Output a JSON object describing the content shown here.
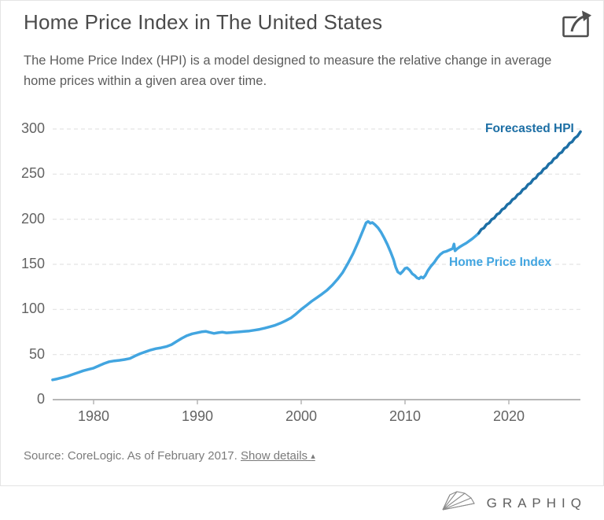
{
  "header": {
    "title": "Home Price Index in The United States",
    "subtitle": "The Home Price Index (HPI) is a model designed to measure the relative change in average home prices within a given area over time.",
    "share_icon": "share-export-icon"
  },
  "chart_data": {
    "type": "line",
    "title": "Home Price Index in The United States",
    "xlabel": "",
    "ylabel": "",
    "grid": "horizontal-dashed",
    "legend_position": "inline-line-labels",
    "x_axis": {
      "ticks": [
        1980,
        1990,
        2000,
        2010,
        2020
      ],
      "range": [
        1976.05,
        2026.9
      ]
    },
    "y_axis": {
      "ticks": [
        0,
        50,
        100,
        150,
        200,
        250,
        300
      ],
      "range": [
        0,
        310
      ]
    },
    "series": [
      {
        "name": "Home Price Index",
        "color": "#42a5e0",
        "points": [
          [
            1976.05,
            22
          ],
          [
            1976.5,
            23
          ],
          [
            1977,
            24.5
          ],
          [
            1977.5,
            26
          ],
          [
            1978,
            28
          ],
          [
            1978.5,
            30
          ],
          [
            1979,
            32
          ],
          [
            1979.5,
            33.5
          ],
          [
            1980,
            35
          ],
          [
            1980.5,
            37.5
          ],
          [
            1981,
            40
          ],
          [
            1981.5,
            42
          ],
          [
            1982,
            43
          ],
          [
            1982.5,
            43.6
          ],
          [
            1983,
            44.5
          ],
          [
            1983.5,
            45.6
          ],
          [
            1984,
            48.5
          ],
          [
            1984.5,
            51
          ],
          [
            1985,
            53
          ],
          [
            1985.5,
            55
          ],
          [
            1986,
            56.5
          ],
          [
            1986.5,
            57.5
          ],
          [
            1987,
            58.8
          ],
          [
            1987.5,
            61
          ],
          [
            1988,
            64.5
          ],
          [
            1988.5,
            68
          ],
          [
            1989,
            71
          ],
          [
            1989.5,
            73
          ],
          [
            1990,
            74.2
          ],
          [
            1990.4,
            75.2
          ],
          [
            1990.8,
            75.7
          ],
          [
            1991.2,
            74.5
          ],
          [
            1991.6,
            73.4
          ],
          [
            1992,
            74.2
          ],
          [
            1992.4,
            74.8
          ],
          [
            1992.8,
            74
          ],
          [
            1993.2,
            74.3
          ],
          [
            1993.6,
            74.7
          ],
          [
            1994,
            75.1
          ],
          [
            1994.5,
            75.6
          ],
          [
            1995,
            76.1
          ],
          [
            1995.5,
            77
          ],
          [
            1996,
            78
          ],
          [
            1996.5,
            79.3
          ],
          [
            1997,
            80.8
          ],
          [
            1997.5,
            82.5
          ],
          [
            1998,
            84.8
          ],
          [
            1998.5,
            87.5
          ],
          [
            1999,
            90.5
          ],
          [
            1999.5,
            95
          ],
          [
            2000,
            100
          ],
          [
            2000.5,
            104.5
          ],
          [
            2001,
            109
          ],
          [
            2001.5,
            113
          ],
          [
            2002,
            117
          ],
          [
            2002.5,
            121.5
          ],
          [
            2003,
            127
          ],
          [
            2003.5,
            133.5
          ],
          [
            2004,
            141
          ],
          [
            2004.5,
            151
          ],
          [
            2005,
            162
          ],
          [
            2005.5,
            175
          ],
          [
            2006,
            189
          ],
          [
            2006.25,
            196
          ],
          [
            2006.45,
            197.5
          ],
          [
            2006.65,
            195.5
          ],
          [
            2006.85,
            196.3
          ],
          [
            2007.1,
            194
          ],
          [
            2007.4,
            190.5
          ],
          [
            2007.7,
            185.5
          ],
          [
            2008,
            179
          ],
          [
            2008.3,
            172
          ],
          [
            2008.6,
            164
          ],
          [
            2008.9,
            155
          ],
          [
            2009.1,
            147
          ],
          [
            2009.3,
            141.5
          ],
          [
            2009.55,
            139.5
          ],
          [
            2009.8,
            142.5
          ],
          [
            2010,
            145.5
          ],
          [
            2010.2,
            146.2
          ],
          [
            2010.45,
            143.5
          ],
          [
            2010.7,
            139.5
          ],
          [
            2010.95,
            137.5
          ],
          [
            2011.15,
            135
          ],
          [
            2011.35,
            134
          ],
          [
            2011.55,
            136
          ],
          [
            2011.75,
            134.8
          ],
          [
            2011.95,
            137.5
          ],
          [
            2012.2,
            143
          ],
          [
            2012.5,
            148
          ],
          [
            2012.8,
            152
          ],
          [
            2013.1,
            157
          ],
          [
            2013.4,
            161
          ],
          [
            2013.7,
            163.5
          ],
          [
            2014,
            164.5
          ],
          [
            2014.3,
            166
          ],
          [
            2014.6,
            167.5
          ],
          [
            2014.72,
            172.5
          ],
          [
            2014.82,
            165
          ],
          [
            2015,
            167
          ],
          [
            2015.3,
            169.5
          ],
          [
            2015.6,
            171.5
          ],
          [
            2015.9,
            173.5
          ],
          [
            2016.2,
            176
          ],
          [
            2016.5,
            178.5
          ],
          [
            2016.8,
            181.5
          ],
          [
            2017.1,
            184.5
          ]
        ]
      },
      {
        "name": "Forecasted HPI",
        "color": "#1d6fa5",
        "points": [
          [
            2017.1,
            184.5
          ],
          [
            2017.35,
            188.8
          ],
          [
            2017.6,
            190.3
          ],
          [
            2017.85,
            194.3
          ],
          [
            2018.1,
            195.8
          ],
          [
            2018.35,
            199.8
          ],
          [
            2018.6,
            201.3
          ],
          [
            2018.85,
            205.3
          ],
          [
            2019.1,
            206.8
          ],
          [
            2019.35,
            210.8
          ],
          [
            2019.6,
            212.3
          ],
          [
            2019.85,
            216.3
          ],
          [
            2020.1,
            217.8
          ],
          [
            2020.35,
            221.8
          ],
          [
            2020.6,
            223.3
          ],
          [
            2020.85,
            227.3
          ],
          [
            2021.1,
            228.8
          ],
          [
            2021.35,
            232.9
          ],
          [
            2021.6,
            234.4
          ],
          [
            2021.85,
            238.5
          ],
          [
            2022.1,
            240.0
          ],
          [
            2022.35,
            244.2
          ],
          [
            2022.6,
            245.7
          ],
          [
            2022.85,
            249.9
          ],
          [
            2023.1,
            251.4
          ],
          [
            2023.35,
            255.6
          ],
          [
            2023.6,
            257.1
          ],
          [
            2023.85,
            261.3
          ],
          [
            2024.1,
            262.8
          ],
          [
            2024.35,
            267.0
          ],
          [
            2024.6,
            268.5
          ],
          [
            2024.85,
            272.7
          ],
          [
            2025.1,
            274.2
          ],
          [
            2025.35,
            278.5
          ],
          [
            2025.6,
            280.0
          ],
          [
            2025.85,
            284.3
          ],
          [
            2026.1,
            285.8
          ],
          [
            2026.35,
            290.0
          ],
          [
            2026.6,
            292.0
          ],
          [
            2026.9,
            297.0
          ]
        ]
      }
    ]
  },
  "source": {
    "text": "Source: CoreLogic. As of February 2017.",
    "details_link": "Show details",
    "collapse_glyph": "▴"
  },
  "footer": {
    "brand": "GRAPHIQ",
    "logo_icon": "graphiq-fan-icon"
  },
  "colors": {
    "history_line": "#42a5e0",
    "forecast_line": "#1d6fa5",
    "gridline": "#e3e3e3",
    "axis_line": "#adadad",
    "title_text": "#4b4b4b",
    "subtitle_text": "#5c5c5c",
    "axis_text": "#636363",
    "source_text": "#7b7b7b",
    "brand_text": "#5f5f5f"
  }
}
